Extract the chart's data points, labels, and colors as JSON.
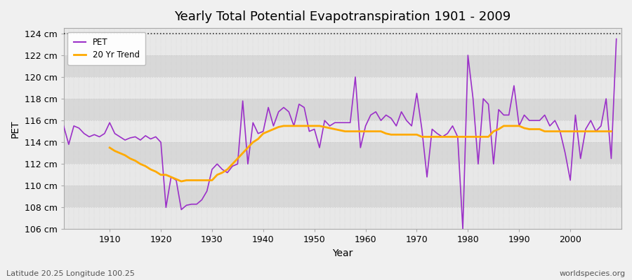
{
  "title": "Yearly Total Potential Evapotranspiration 1901 - 2009",
  "xlabel": "Year",
  "ylabel": "PET",
  "footer_left": "Latitude 20.25 Longitude 100.25",
  "footer_right": "worldspecies.org",
  "ylim": [
    106,
    124.5
  ],
  "ytick_values": [
    106,
    108,
    110,
    112,
    114,
    116,
    118,
    120,
    122,
    124
  ],
  "ytick_labels": [
    "106 cm",
    "108 cm",
    "110 cm",
    "112 cm",
    "114 cm",
    "116 cm",
    "118 cm",
    "120 cm",
    "122 cm",
    "124 cm"
  ],
  "xtick_values": [
    1910,
    1920,
    1930,
    1940,
    1950,
    1960,
    1970,
    1980,
    1990,
    2000
  ],
  "xlim": [
    1901,
    2010
  ],
  "pet_color": "#9b30c8",
  "trend_color": "#ffaa00",
  "bg_color": "#f0f0f0",
  "plot_bg_light": "#e8e8e8",
  "plot_bg_dark": "#d8d8d8",
  "grid_color": "#ffffff",
  "dotted_line_y": 124,
  "years": [
    1901,
    1902,
    1903,
    1904,
    1905,
    1906,
    1907,
    1908,
    1909,
    1910,
    1911,
    1912,
    1913,
    1914,
    1915,
    1916,
    1917,
    1918,
    1919,
    1920,
    1921,
    1922,
    1923,
    1924,
    1925,
    1926,
    1927,
    1928,
    1929,
    1930,
    1931,
    1932,
    1933,
    1934,
    1935,
    1936,
    1937,
    1938,
    1939,
    1940,
    1941,
    1942,
    1943,
    1944,
    1945,
    1946,
    1947,
    1948,
    1949,
    1950,
    1951,
    1952,
    1953,
    1954,
    1955,
    1956,
    1957,
    1958,
    1959,
    1960,
    1961,
    1962,
    1963,
    1964,
    1965,
    1966,
    1967,
    1968,
    1969,
    1970,
    1971,
    1972,
    1973,
    1974,
    1975,
    1976,
    1977,
    1978,
    1979,
    1980,
    1981,
    1982,
    1983,
    1984,
    1985,
    1986,
    1987,
    1988,
    1989,
    1990,
    1991,
    1992,
    1993,
    1994,
    1995,
    1996,
    1997,
    1998,
    1999,
    2000,
    2001,
    2002,
    2003,
    2004,
    2005,
    2006,
    2007,
    2008,
    2009
  ],
  "pet_values": [
    115.5,
    113.8,
    115.5,
    115.3,
    114.8,
    114.5,
    114.7,
    114.5,
    114.8,
    115.8,
    114.8,
    114.5,
    114.2,
    114.4,
    114.5,
    114.2,
    114.6,
    114.3,
    114.5,
    114.0,
    108.0,
    110.8,
    110.5,
    107.8,
    108.2,
    108.3,
    108.3,
    108.7,
    109.5,
    111.5,
    112.0,
    111.5,
    111.2,
    111.8,
    112.0,
    117.8,
    112.0,
    115.8,
    114.8,
    115.0,
    117.2,
    115.5,
    116.8,
    117.2,
    116.8,
    115.5,
    117.5,
    117.2,
    115.0,
    115.2,
    113.5,
    116.0,
    115.5,
    115.8,
    115.8,
    115.8,
    115.8,
    120.0,
    113.5,
    115.5,
    116.5,
    116.8,
    116.0,
    116.5,
    116.2,
    115.5,
    116.8,
    116.0,
    115.5,
    118.5,
    115.2,
    110.8,
    115.2,
    114.8,
    114.5,
    114.8,
    115.5,
    114.5,
    106.0,
    122.0,
    118.0,
    112.0,
    118.0,
    117.5,
    112.0,
    117.0,
    116.5,
    116.5,
    119.2,
    115.5,
    116.5,
    116.0,
    116.0,
    116.0,
    116.5,
    115.5,
    116.0,
    115.0,
    113.0,
    110.5,
    116.5,
    112.5,
    115.2,
    116.0,
    115.0,
    115.5,
    118.0,
    112.5,
    123.5
  ],
  "trend_values": [
    null,
    null,
    null,
    null,
    null,
    null,
    null,
    null,
    null,
    113.5,
    113.2,
    113.0,
    112.8,
    112.5,
    112.3,
    112.0,
    111.8,
    111.5,
    111.3,
    111.0,
    111.0,
    110.8,
    110.6,
    110.4,
    110.5,
    110.5,
    110.5,
    110.5,
    110.5,
    110.5,
    111.0,
    111.2,
    111.5,
    112.0,
    112.5,
    113.0,
    113.5,
    114.0,
    114.3,
    114.8,
    115.0,
    115.2,
    115.4,
    115.5,
    115.5,
    115.5,
    115.5,
    115.5,
    115.5,
    115.5,
    115.5,
    115.4,
    115.3,
    115.2,
    115.1,
    115.0,
    115.0,
    115.0,
    115.0,
    115.0,
    115.0,
    115.0,
    115.0,
    114.8,
    114.7,
    114.7,
    114.7,
    114.7,
    114.7,
    114.7,
    114.5,
    114.5,
    114.5,
    114.5,
    114.5,
    114.5,
    114.5,
    114.5,
    114.5,
    114.5,
    114.5,
    114.5,
    114.5,
    114.5,
    115.0,
    115.2,
    115.5,
    115.5,
    115.5,
    115.5,
    115.3,
    115.2,
    115.2,
    115.2,
    115.0,
    115.0,
    115.0,
    115.0,
    115.0,
    115.0,
    115.0,
    115.0,
    115.0,
    115.0,
    115.0,
    115.0,
    115.0,
    115.0
  ]
}
